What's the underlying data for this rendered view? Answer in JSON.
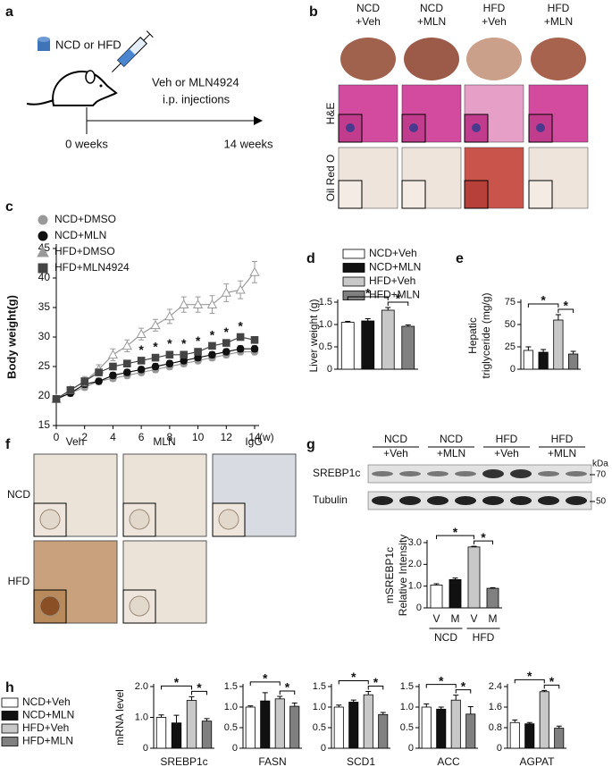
{
  "panel_labels": [
    "a",
    "b",
    "c",
    "d",
    "e",
    "f",
    "g",
    "h"
  ],
  "diagram": {
    "diet": "NCD or HFD",
    "treatment": "Veh or MLN4924",
    "route": "i.p. injections",
    "start": "0 weeks",
    "end": "14 weeks"
  },
  "histology": {
    "columns": [
      [
        "NCD",
        "+Veh"
      ],
      [
        "NCD",
        "+MLN"
      ],
      [
        "HFD",
        "+Veh"
      ],
      [
        "HFD",
        "+MLN"
      ]
    ],
    "rows": [
      "H&E",
      "Oil Red O"
    ]
  },
  "ihc": {
    "columns": [
      "Veh",
      "MLN",
      "IgG"
    ],
    "rows": [
      "NCD",
      "HFD"
    ]
  },
  "blot": {
    "groups": [
      [
        "NCD",
        "+Veh"
      ],
      [
        "NCD",
        "+MLN"
      ],
      [
        "HFD",
        "+Veh"
      ],
      [
        "HFD",
        "+MLN"
      ]
    ],
    "unit": "kDa",
    "proteins": [
      "SREBP1c",
      "Tubulin"
    ],
    "markers": [
      "70",
      "50"
    ]
  },
  "chart_data": [
    {
      "type": "line",
      "y_label": "Body weight(g)",
      "x_unit": "(w)",
      "x": [
        0,
        1,
        2,
        3,
        4,
        5,
        6,
        7,
        8,
        9,
        10,
        11,
        12,
        13,
        14
      ],
      "xlim": [
        0,
        14
      ],
      "xticks": [
        0,
        2,
        4,
        6,
        8,
        10,
        12,
        14
      ],
      "ylim": [
        15,
        45
      ],
      "yticks": [
        15,
        20,
        25,
        30,
        35,
        40,
        45
      ],
      "series": [
        {
          "name": "NCD+DMSO",
          "color": "#999999",
          "marker": "circle",
          "values": [
            19.5,
            20.5,
            21.5,
            22.5,
            23,
            23.5,
            24,
            24.5,
            25,
            25.5,
            26,
            26.5,
            27,
            27.5,
            27.5
          ],
          "errors": [
            0.5,
            0.5,
            0.5,
            0.5,
            0.5,
            0.5,
            0.5,
            0.5,
            0.5,
            0.5,
            0.5,
            0.5,
            0.5,
            0.5,
            0.5
          ]
        },
        {
          "name": "NCD+MLN",
          "color": "#111111",
          "marker": "circle",
          "values": [
            19.5,
            20.5,
            22,
            22.5,
            23.5,
            24,
            24.5,
            25,
            25.5,
            26,
            26.5,
            27,
            27.5,
            28,
            28
          ],
          "errors": [
            0.5,
            0.5,
            0.5,
            0.5,
            0.5,
            0.5,
            0.5,
            0.5,
            0.5,
            0.5,
            0.5,
            0.5,
            0.5,
            0.5,
            0.5
          ]
        },
        {
          "name": "HFD+DMSO",
          "color": "#999999",
          "marker": "triangle",
          "values": [
            19.5,
            21,
            22.5,
            24.5,
            27,
            28.5,
            30.5,
            32,
            33.5,
            35.5,
            35.5,
            35.5,
            37.5,
            38,
            41
          ],
          "errors": [
            0.5,
            0.6,
            0.8,
            0.8,
            1,
            1,
            1,
            1,
            1.2,
            1.3,
            1.3,
            1.5,
            1.5,
            1.5,
            1.8
          ]
        },
        {
          "name": "HFD+MLN4924",
          "color": "#444444",
          "marker": "square",
          "values": [
            19.5,
            21,
            22.5,
            24,
            25,
            25.5,
            26,
            26.5,
            27,
            27,
            27.5,
            28.5,
            29,
            30,
            29.5
          ],
          "errors": [
            0.5,
            0.5,
            0.5,
            0.5,
            0.5,
            0.5,
            0.5,
            0.5,
            0.5,
            0.5,
            0.5,
            0.5,
            0.5,
            0.5,
            0.5
          ]
        }
      ],
      "annotations": [
        {
          "text": "*",
          "x": 6
        },
        {
          "text": "*",
          "x": 7
        },
        {
          "text": "*",
          "x": 8
        },
        {
          "text": "*",
          "x": 9
        },
        {
          "text": "*",
          "x": 10
        },
        {
          "text": "*",
          "x": 11
        },
        {
          "text": "*",
          "x": 12
        },
        {
          "text": "*",
          "x": 13
        }
      ]
    },
    {
      "type": "bar",
      "y_label": "Liver weight (g)",
      "categories": [
        "NCD+Veh",
        "NCD+MLN",
        "HFD+Veh",
        "HFD+MLN"
      ],
      "legend": "top",
      "colors": [
        "#ffffff",
        "#111111",
        "#c8c8c8",
        "#808080"
      ],
      "values": [
        1.05,
        1.08,
        1.32,
        0.96
      ],
      "errors": [
        0.02,
        0.05,
        0.06,
        0.03
      ],
      "ylim": [
        0,
        1.5
      ],
      "yticks": [
        0,
        0.5,
        {
          "value": 1,
          "label": "1.0"
        },
        1.5
      ],
      "annotations": [
        "*",
        "*"
      ]
    },
    {
      "type": "bar",
      "y_label": [
        "Hepatic",
        "triglyceride (mg/g)"
      ],
      "colors": [
        "#ffffff",
        "#111111",
        "#c8c8c8",
        "#808080"
      ],
      "values": [
        21,
        19,
        55,
        17
      ],
      "errors": [
        4,
        3,
        6,
        3
      ],
      "ylim": [
        0,
        75
      ],
      "yticks": [
        0,
        25,
        50,
        75
      ],
      "annotations": [
        "*",
        "*"
      ]
    },
    {
      "type": "bar",
      "y_label": [
        "mSREBP1c",
        "Relative Intensity"
      ],
      "categories": [
        "V",
        "M",
        "V",
        "M"
      ],
      "groups": [
        "NCD",
        "HFD"
      ],
      "colors": [
        "#ffffff",
        "#111111",
        "#c8c8c8",
        "#808080"
      ],
      "values": [
        1.05,
        1.3,
        2.8,
        0.9
      ],
      "errors": [
        0.06,
        0.07,
        0.03,
        0.03
      ],
      "ylim": [
        0,
        3
      ],
      "yticks": [
        0,
        {
          "value": 1,
          "label": "1.0"
        },
        {
          "value": 2,
          "label": "2.0"
        },
        {
          "value": 3,
          "label": "3.0"
        }
      ],
      "annotations": [
        "*",
        "*"
      ]
    },
    {
      "type": "bar",
      "x_label": "SREBP1c",
      "y_label": "mRNA level",
      "categories": [
        "NCD+Veh",
        "NCD+MLN",
        "HFD+Veh",
        "HFD+MLN"
      ],
      "legend": "left",
      "colors": [
        "#ffffff",
        "#111111",
        "#c8c8c8",
        "#808080"
      ],
      "values": [
        1.0,
        0.82,
        1.55,
        0.88
      ],
      "errors": [
        0.08,
        0.25,
        0.12,
        0.08
      ],
      "ylim": [
        0,
        2
      ],
      "yticks": [
        0,
        {
          "value": 1,
          "label": "1.0"
        },
        {
          "value": 2,
          "label": "2.0"
        }
      ],
      "annotations": [
        "*",
        "*"
      ]
    },
    {
      "type": "bar",
      "x_label": "FASN",
      "colors": [
        "#ffffff",
        "#111111",
        "#c8c8c8",
        "#808080"
      ],
      "values": [
        1.0,
        1.15,
        1.2,
        1.02
      ],
      "errors": [
        0.03,
        0.2,
        0.06,
        0.08
      ],
      "ylim": [
        0,
        1.5
      ],
      "yticks": [
        0,
        0.5,
        {
          "value": 1,
          "label": "1.0"
        },
        1.5
      ],
      "annotations": [
        "*",
        "*"
      ]
    },
    {
      "type": "bar",
      "x_label": "SCD1",
      "colors": [
        "#ffffff",
        "#111111",
        "#c8c8c8",
        "#808080"
      ],
      "values": [
        1.0,
        1.12,
        1.3,
        0.82
      ],
      "errors": [
        0.05,
        0.05,
        0.08,
        0.05
      ],
      "ylim": [
        0,
        1.5
      ],
      "yticks": [
        0,
        0.5,
        {
          "value": 1,
          "label": "1.0"
        },
        1.5
      ],
      "annotations": [
        "*",
        "*"
      ]
    },
    {
      "type": "bar",
      "x_label": "ACC",
      "colors": [
        "#ffffff",
        "#111111",
        "#c8c8c8",
        "#808080"
      ],
      "values": [
        1.0,
        0.95,
        1.17,
        0.83
      ],
      "errors": [
        0.08,
        0.05,
        0.12,
        0.18
      ],
      "ylim": [
        0,
        1.5
      ],
      "yticks": [
        0,
        0.5,
        {
          "value": 1,
          "label": "1.0"
        },
        1.5
      ],
      "annotations": [
        "*",
        "*"
      ]
    },
    {
      "type": "bar",
      "x_label": "AGPAT",
      "colors": [
        "#ffffff",
        "#111111",
        "#c8c8c8",
        "#808080"
      ],
      "values": [
        1.0,
        0.95,
        2.2,
        0.78
      ],
      "errors": [
        0.1,
        0.05,
        0.05,
        0.08
      ],
      "ylim": [
        0,
        2.4
      ],
      "yticks": [
        0,
        0.8,
        1.6,
        2.4
      ],
      "annotations": [
        "*",
        "*"
      ]
    }
  ]
}
